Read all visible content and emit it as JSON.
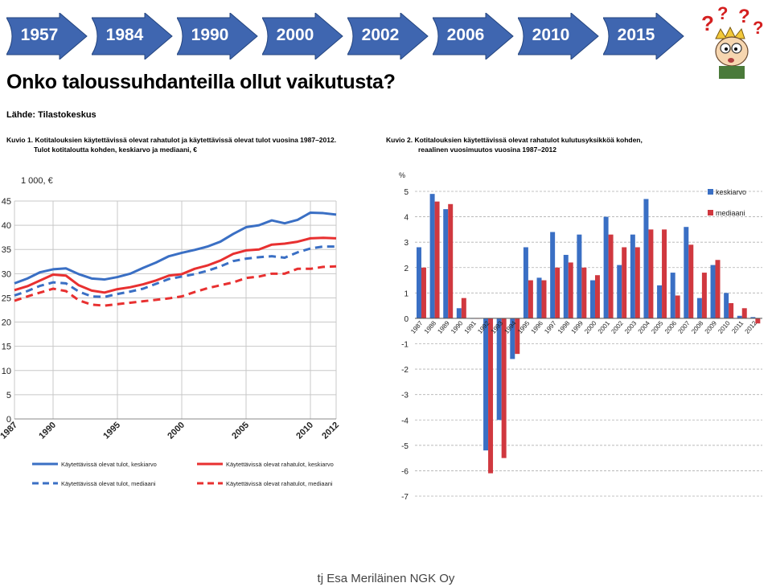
{
  "timeline": {
    "years": [
      "1957",
      "1984",
      "1990",
      "2000",
      "2002",
      "2006",
      "2010",
      "2015"
    ],
    "arrow_color": "#3f66b0"
  },
  "heading": "Onko taloussuhdanteilla ollut vaikutusta?",
  "source": "Lähde: Tilastokeskus",
  "captions": {
    "left": {
      "label": "Kuvio 1.",
      "line1": "Kotitalouksien käytettävissä olevat rahatulot ja käytettävissä olevat tulot vuosina 1987–2012.",
      "line2": "Tulot kotitaloutta kohden, keskiarvo ja mediaani, €"
    },
    "right": {
      "label": "Kuvio 2.",
      "line1": "Kotitalouksien käytettävissä olevat rahatulot kulutusyksikköä kohden,",
      "line2": "reaalinen vuosimuutos vuosina 1987–2012"
    }
  },
  "footer": "tj Esa Meriläinen NGK Oy",
  "chart_data": [
    {
      "type": "line",
      "unit_label": "1 000, €",
      "x": [
        1987,
        1988,
        1989,
        1990,
        1991,
        1992,
        1993,
        1994,
        1995,
        1996,
        1997,
        1998,
        1999,
        2000,
        2001,
        2002,
        2003,
        2004,
        2005,
        2006,
        2007,
        2008,
        2009,
        2010,
        2011,
        2012
      ],
      "x_ticks": [
        "1987",
        "1990",
        "1995",
        "2000",
        "2005",
        "2010",
        "2012"
      ],
      "ylim": [
        0,
        45
      ],
      "y_ticks": [
        0,
        5,
        10,
        15,
        20,
        25,
        30,
        35,
        40,
        45
      ],
      "grid": true,
      "legend_position": "bottom",
      "series": [
        {
          "name": "Käytettävissä olevat tulot, keskiarvo",
          "color": "#3a6fc4",
          "dash": false,
          "values": [
            28.0,
            29.0,
            30.3,
            30.9,
            31.1,
            29.9,
            29.0,
            28.8,
            29.3,
            30.0,
            31.2,
            32.3,
            33.6,
            34.3,
            34.9,
            35.6,
            36.6,
            38.2,
            39.6,
            40.0,
            41.0,
            40.4,
            41.1,
            42.6,
            42.5,
            42.2
          ]
        },
        {
          "name": "Käytettävissä olevat rahatulot, keskiarvo",
          "color": "#e83030",
          "dash": false,
          "values": [
            26.6,
            27.4,
            28.6,
            29.8,
            29.6,
            27.6,
            26.5,
            26.1,
            26.8,
            27.2,
            27.8,
            28.6,
            29.6,
            29.9,
            31.0,
            31.7,
            32.7,
            34.1,
            34.8,
            35.0,
            36.0,
            36.2,
            36.6,
            37.3,
            37.4,
            37.3
          ]
        },
        {
          "name": "Käytettävissä olevat tulot, mediaani",
          "color": "#3a6fc4",
          "dash": true,
          "values": [
            25.5,
            26.4,
            27.5,
            28.2,
            28.0,
            26.3,
            25.3,
            25.2,
            25.8,
            26.3,
            26.9,
            27.9,
            28.9,
            29.4,
            29.9,
            30.6,
            31.5,
            32.6,
            33.1,
            33.4,
            33.6,
            33.3,
            34.4,
            35.2,
            35.6,
            35.6
          ]
        },
        {
          "name": "Käytettävissä olevat rahatulot, mediaani",
          "color": "#e83030",
          "dash": true,
          "values": [
            24.4,
            25.3,
            26.1,
            26.9,
            26.4,
            24.5,
            23.6,
            23.4,
            23.7,
            24.0,
            24.3,
            24.6,
            24.9,
            25.3,
            26.2,
            27.0,
            27.6,
            28.2,
            29.1,
            29.4,
            30.0,
            30.0,
            31.0,
            31.0,
            31.4,
            31.5
          ]
        }
      ]
    },
    {
      "type": "bar",
      "unit_label": "%",
      "categories": [
        "1987",
        "1988",
        "1989",
        "1990",
        "1991",
        "1992",
        "1993",
        "1994",
        "1995",
        "1996",
        "1997",
        "1998",
        "1999",
        "2000",
        "2001",
        "2002",
        "2003",
        "2004",
        "2005",
        "2006",
        "2007",
        "2008",
        "2009",
        "2010",
        "2011",
        "2012"
      ],
      "ylim": [
        -7,
        5
      ],
      "y_ticks": [
        5,
        4,
        3,
        2,
        1,
        0,
        -1,
        -2,
        -3,
        -4,
        -5,
        -6,
        -7
      ],
      "grid": true,
      "legend_position": "top-right",
      "series": [
        {
          "name": "keskiarvo",
          "color": "#3a6fc4",
          "values": [
            2.8,
            4.9,
            4.3,
            0.4,
            0.0,
            -5.2,
            -4.0,
            -1.6,
            2.8,
            1.6,
            3.4,
            2.5,
            3.3,
            1.5,
            4.0,
            2.1,
            3.3,
            4.7,
            1.3,
            1.8,
            3.6,
            0.8,
            2.1,
            1.0,
            0.1,
            0.05
          ]
        },
        {
          "name": "mediaani",
          "color": "#d0383f",
          "values": [
            2.0,
            4.6,
            4.5,
            0.8,
            0.0,
            -6.1,
            -5.5,
            -1.4,
            1.5,
            1.5,
            2.0,
            2.2,
            2.0,
            1.7,
            3.3,
            2.8,
            2.8,
            3.5,
            3.5,
            0.9,
            2.9,
            1.8,
            2.3,
            0.6,
            0.4,
            -0.2
          ]
        }
      ]
    }
  ]
}
